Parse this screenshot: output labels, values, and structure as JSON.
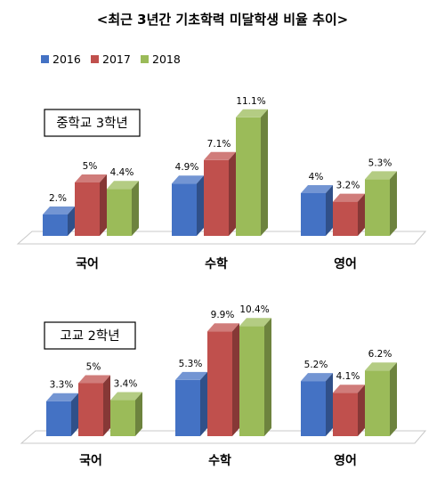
{
  "title": "<최근 3년간 기초학력 미달학생 비율 추이>",
  "legend": [
    {
      "label": "2016",
      "color": "#4472C4"
    },
    {
      "label": "2017",
      "color": "#C0504D"
    },
    {
      "label": "2018",
      "color": "#9BBB59"
    }
  ],
  "chart_data": [
    {
      "type": "bar",
      "title": "중학교 3학년",
      "categories": [
        "국어",
        "수학",
        "영어"
      ],
      "series": [
        {
          "name": "2016",
          "values": [
            2.0,
            4.9,
            4.0
          ],
          "labels": [
            "2.%",
            "4.9%",
            "4%"
          ]
        },
        {
          "name": "2017",
          "values": [
            5.0,
            7.1,
            3.2
          ],
          "labels": [
            "5%",
            "7.1%",
            "3.2%"
          ]
        },
        {
          "name": "2018",
          "values": [
            4.4,
            11.1,
            5.3
          ],
          "labels": [
            "4.4%",
            "11.1%",
            "5.3%"
          ]
        }
      ],
      "unit": "%",
      "legend_position": "top-left",
      "grid": false
    },
    {
      "type": "bar",
      "title": "고교 2학년",
      "categories": [
        "국어",
        "수학",
        "영어"
      ],
      "series": [
        {
          "name": "2016",
          "values": [
            3.3,
            5.3,
            5.2
          ],
          "labels": [
            "3.3%",
            "5.3%",
            "5.2%"
          ]
        },
        {
          "name": "2017",
          "values": [
            5.0,
            9.9,
            4.1
          ],
          "labels": [
            "5%",
            "9.9%",
            "4.1%"
          ]
        },
        {
          "name": "2018",
          "values": [
            3.4,
            10.4,
            6.2
          ],
          "labels": [
            "3.4%",
            "10.4%",
            "6.2%"
          ]
        }
      ],
      "unit": "%",
      "legend_position": "top-left",
      "grid": false
    }
  ]
}
